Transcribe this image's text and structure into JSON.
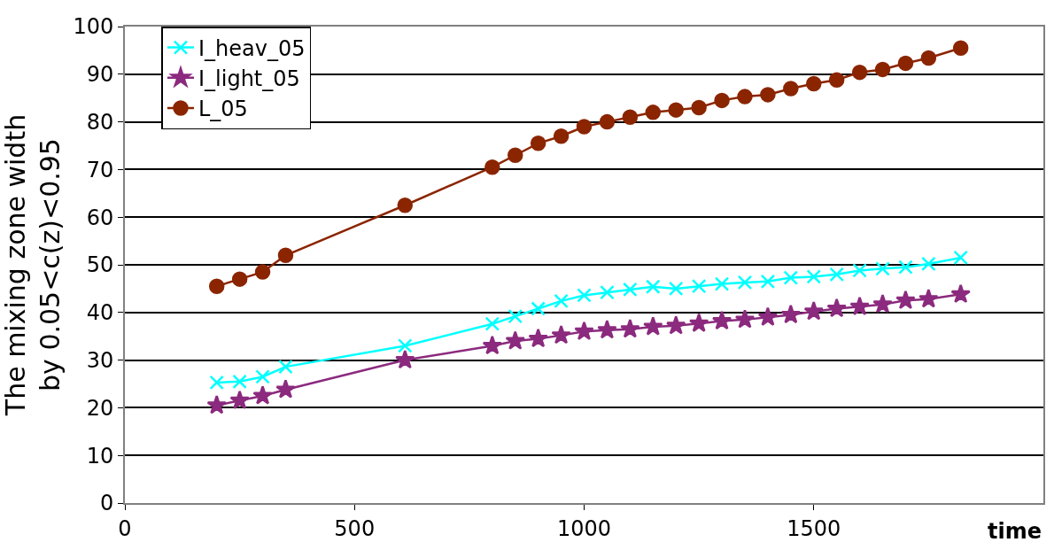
{
  "chart_data": {
    "type": "line",
    "xlabel": "time",
    "ylabel": "The mixing zone width\nby 0.05<c(z)<0.95",
    "x": [
      200,
      250,
      300,
      350,
      610,
      800,
      850,
      900,
      950,
      1000,
      1050,
      1100,
      1150,
      1200,
      1250,
      1300,
      1350,
      1400,
      1450,
      1500,
      1550,
      1600,
      1650,
      1700,
      1750,
      1820
    ],
    "series": [
      {
        "name": "I_heav_05",
        "color": "#00ffff",
        "marker": "cross",
        "values": [
          25.3,
          25.5,
          26.5,
          28.6,
          33,
          37.6,
          39.2,
          40.8,
          42.4,
          43.6,
          44.2,
          44.8,
          45.4,
          45,
          45.5,
          46,
          46.3,
          46.5,
          47.3,
          47.5,
          48,
          48.8,
          49.2,
          49.5,
          50.2,
          51.5
        ]
      },
      {
        "name": "I_light_05",
        "color": "#8b2a7e",
        "marker": "star",
        "values": [
          20.5,
          21.5,
          22.5,
          23.8,
          30,
          33,
          34,
          34.5,
          35.2,
          36,
          36.3,
          36.5,
          37,
          37.2,
          37.7,
          38.2,
          38.5,
          39,
          39.5,
          40.2,
          40.8,
          41.2,
          41.7,
          42.5,
          42.8,
          43.8
        ]
      },
      {
        "name": "L_05",
        "color": "#8b2500",
        "marker": "circle",
        "values": [
          45.5,
          47,
          48.5,
          52,
          62.5,
          70.5,
          73,
          75.5,
          77,
          79,
          80,
          81,
          82,
          82.5,
          83,
          84.5,
          85.3,
          85.7,
          87,
          88,
          88.8,
          90.4,
          91,
          92.3,
          93.4,
          95.5
        ]
      }
    ],
    "xlim": [
      0,
      2000
    ],
    "xticks": [
      0,
      500,
      1000,
      1500
    ],
    "ylim": [
      0,
      100
    ],
    "yticks": [
      0,
      10,
      20,
      30,
      40,
      50,
      60,
      70,
      80,
      90,
      100
    ],
    "grid": "y",
    "legend": "top left",
    "line_style": "solid"
  }
}
